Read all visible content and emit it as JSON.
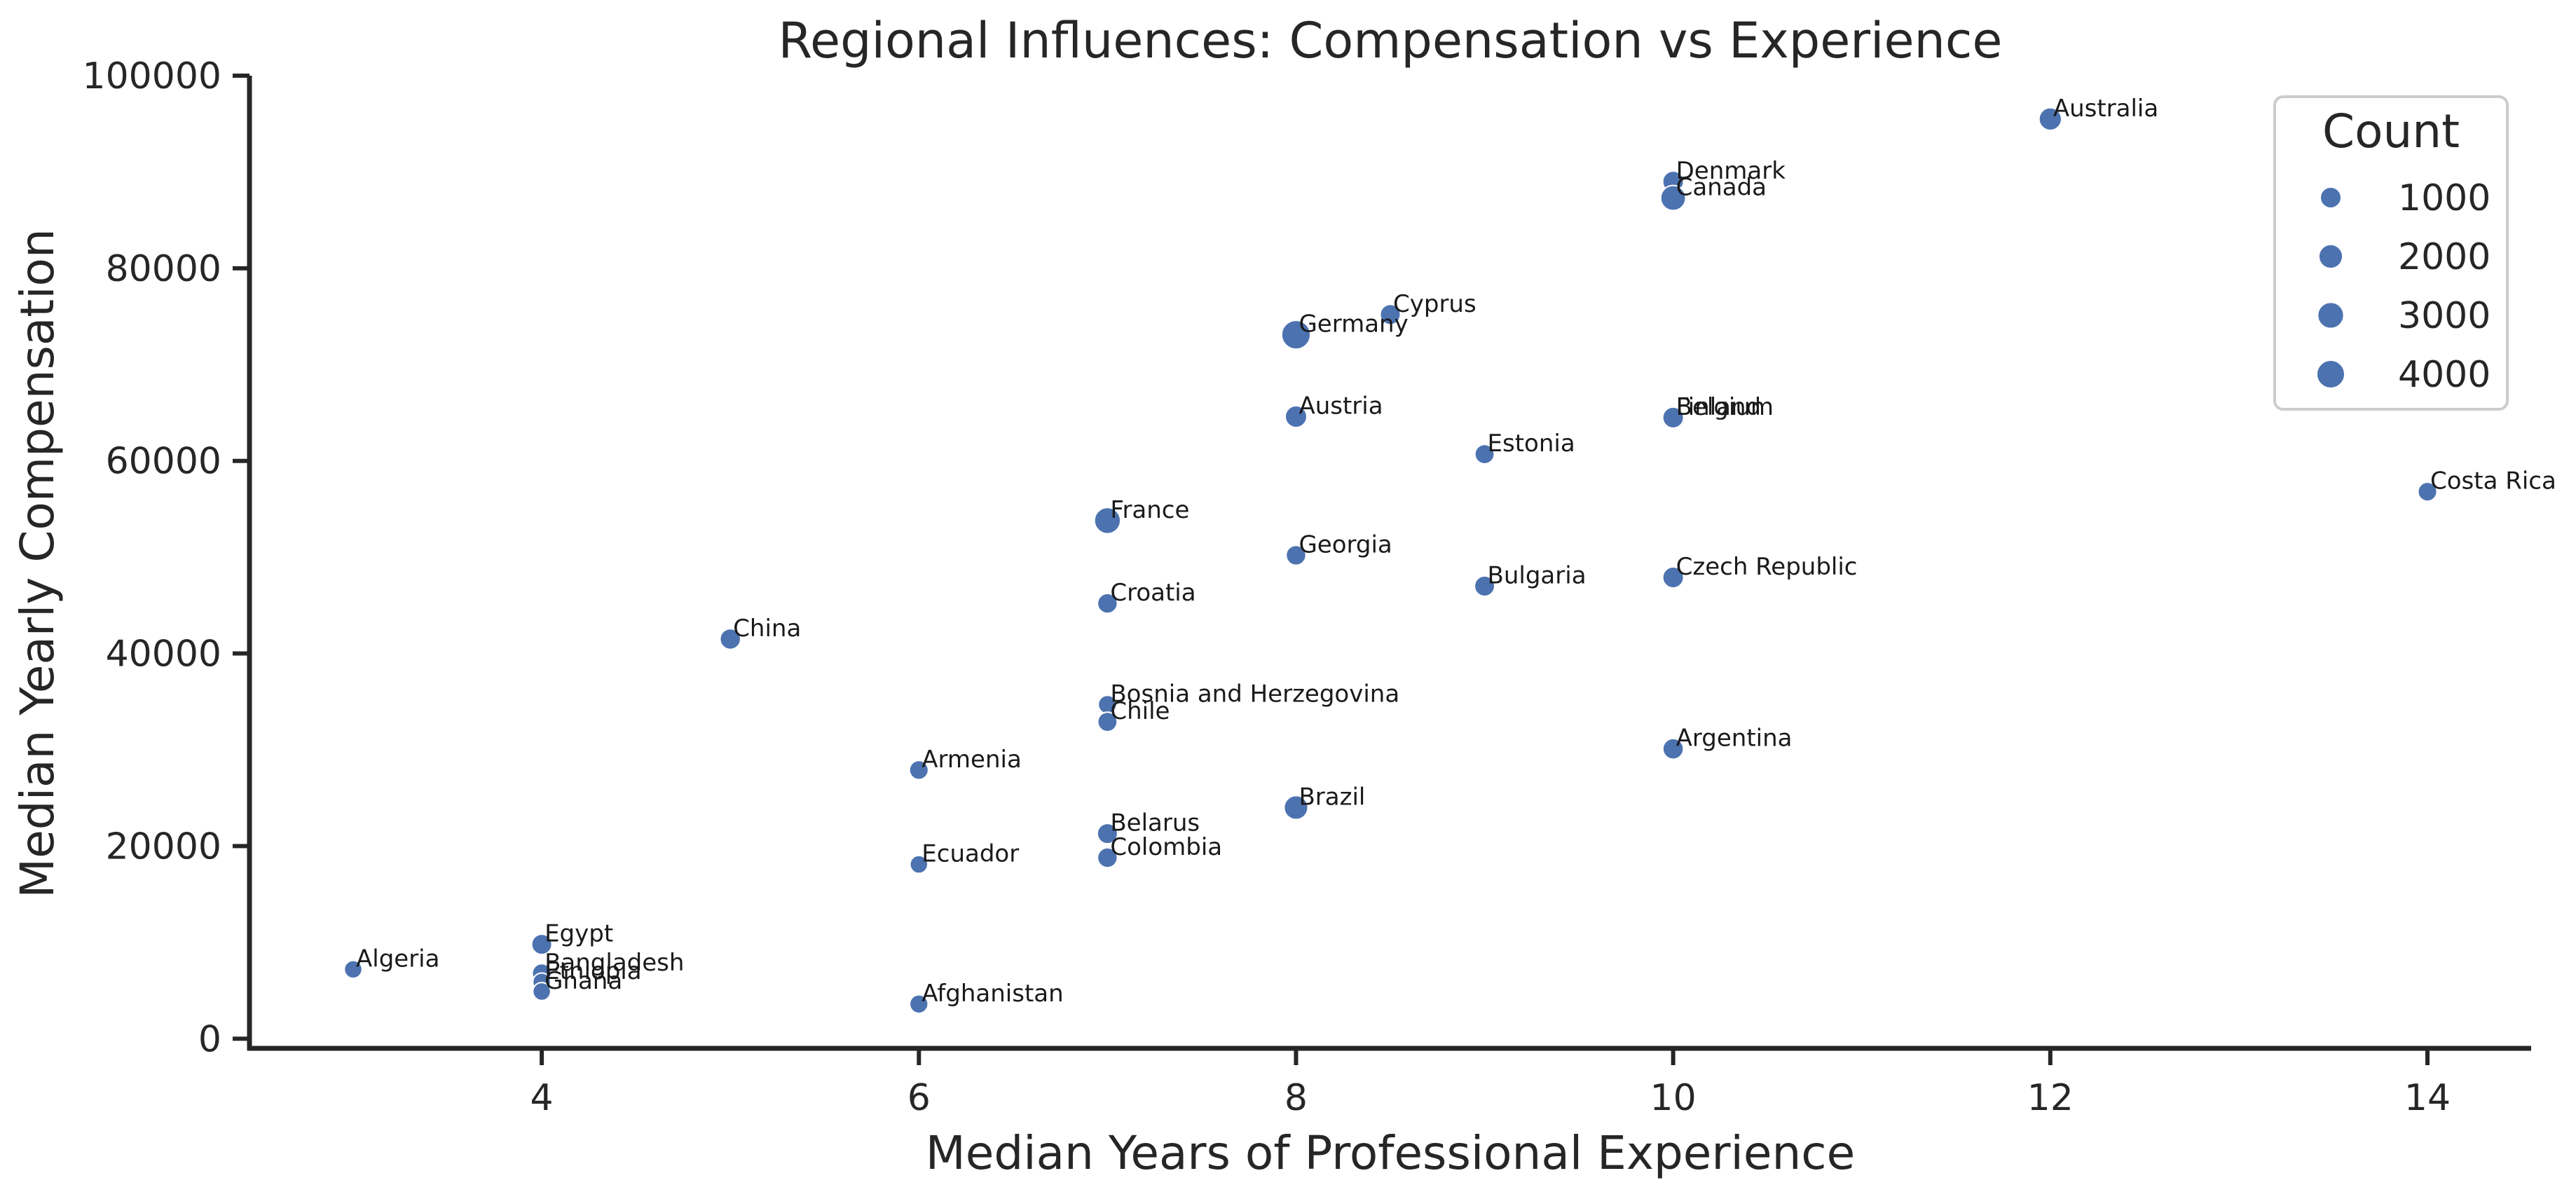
{
  "chart_data": {
    "type": "scatter",
    "title": "Regional Influences: Compensation vs Experience",
    "xlabel": "Median Years of Professional Experience",
    "ylabel": "Median Yearly Compensation",
    "xlim": [
      2.45,
      14.55
    ],
    "ylim": [
      -1000,
      100000
    ],
    "xticks": [
      4,
      6,
      8,
      10,
      12,
      14
    ],
    "yticks": [
      0,
      20000,
      40000,
      60000,
      80000,
      100000
    ],
    "point_color": "#4c72b0",
    "legend": {
      "title": "Count",
      "placement": "top-right",
      "entries": [
        {
          "label": "1000",
          "count": 1000
        },
        {
          "label": "2000",
          "count": 2000
        },
        {
          "label": "3000",
          "count": 3000
        },
        {
          "label": "4000",
          "count": 4000
        }
      ]
    },
    "points": [
      {
        "label": "Australia",
        "x": 12,
        "y": 95500,
        "count": 1500
      },
      {
        "label": "Denmark",
        "x": 10,
        "y": 89000,
        "count": 1000
      },
      {
        "label": "Canada",
        "x": 10,
        "y": 87300,
        "count": 2500
      },
      {
        "label": "Cyprus",
        "x": 8.5,
        "y": 75200,
        "count": 800
      },
      {
        "label": "Germany",
        "x": 8,
        "y": 73100,
        "count": 4500
      },
      {
        "label": "Austria",
        "x": 8,
        "y": 64600,
        "count": 1200
      },
      {
        "label": "Finland",
        "x": 10,
        "y": 64500,
        "count": 1000
      },
      {
        "label": "Belgium",
        "x": 10,
        "y": 64500,
        "count": 1000
      },
      {
        "label": "Estonia",
        "x": 9,
        "y": 60700,
        "count": 600
      },
      {
        "label": "Costa Rica",
        "x": 14,
        "y": 56800,
        "count": 500
      },
      {
        "label": "France",
        "x": 7,
        "y": 53800,
        "count": 3000
      },
      {
        "label": "Georgia",
        "x": 8,
        "y": 50200,
        "count": 700
      },
      {
        "label": "Czech Republic",
        "x": 10,
        "y": 47900,
        "count": 1000
      },
      {
        "label": "Bulgaria",
        "x": 9,
        "y": 47000,
        "count": 800
      },
      {
        "label": "Croatia",
        "x": 7,
        "y": 45200,
        "count": 700
      },
      {
        "label": "China",
        "x": 5,
        "y": 41500,
        "count": 900
      },
      {
        "label": "Bosnia and Herzegovina",
        "x": 7,
        "y": 34700,
        "count": 400
      },
      {
        "label": "Chile",
        "x": 7,
        "y": 32900,
        "count": 600
      },
      {
        "label": "Argentina",
        "x": 10,
        "y": 30100,
        "count": 900
      },
      {
        "label": "Armenia",
        "x": 6,
        "y": 27900,
        "count": 500
      },
      {
        "label": "Brazil",
        "x": 8,
        "y": 24000,
        "count": 2000
      },
      {
        "label": "Belarus",
        "x": 7,
        "y": 21300,
        "count": 800
      },
      {
        "label": "Colombia",
        "x": 7,
        "y": 18800,
        "count": 700
      },
      {
        "label": "Ecuador",
        "x": 6,
        "y": 18100,
        "count": 300
      },
      {
        "label": "Egypt",
        "x": 4,
        "y": 9800,
        "count": 800
      },
      {
        "label": "Algeria",
        "x": 3,
        "y": 7200,
        "count": 300
      },
      {
        "label": "Bangladesh",
        "x": 4,
        "y": 6800,
        "count": 500
      },
      {
        "label": "Ethiopia",
        "x": 4,
        "y": 5900,
        "count": 300
      },
      {
        "label": "Ghana",
        "x": 4,
        "y": 4900,
        "count": 300
      },
      {
        "label": "Afghanistan",
        "x": 6,
        "y": 3600,
        "count": 400
      }
    ]
  }
}
